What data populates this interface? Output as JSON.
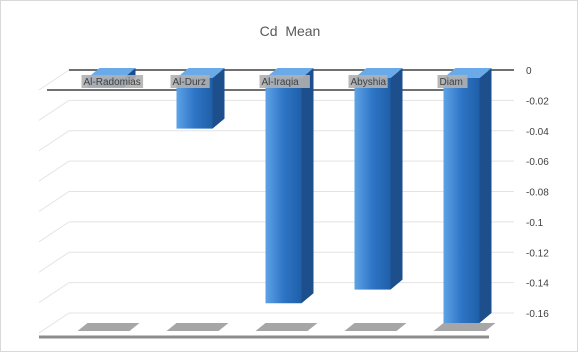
{
  "chart_data": {
    "type": "bar",
    "title": "Cd  Mean",
    "categories": [
      "Al-Radomias",
      "Al-Durz",
      "Al-Iraqia",
      "Abyshia",
      "Diam"
    ],
    "values": [
      -0.005,
      -0.032,
      -0.147,
      -0.138,
      -0.16
    ],
    "ylim": [
      -0.16,
      0
    ],
    "yticks": [
      0,
      -0.02,
      -0.04,
      -0.06,
      -0.08,
      -0.1,
      -0.12,
      -0.14,
      -0.16
    ],
    "ytick_labels": [
      "0",
      "-0.02",
      "-0.04",
      "-0.06",
      "-0.08",
      "-0.1",
      "-0.12",
      "-0.14",
      "-0.16"
    ],
    "style": "3d-column",
    "bar_color": "#2e75c6",
    "grid": true,
    "legend": "none"
  }
}
